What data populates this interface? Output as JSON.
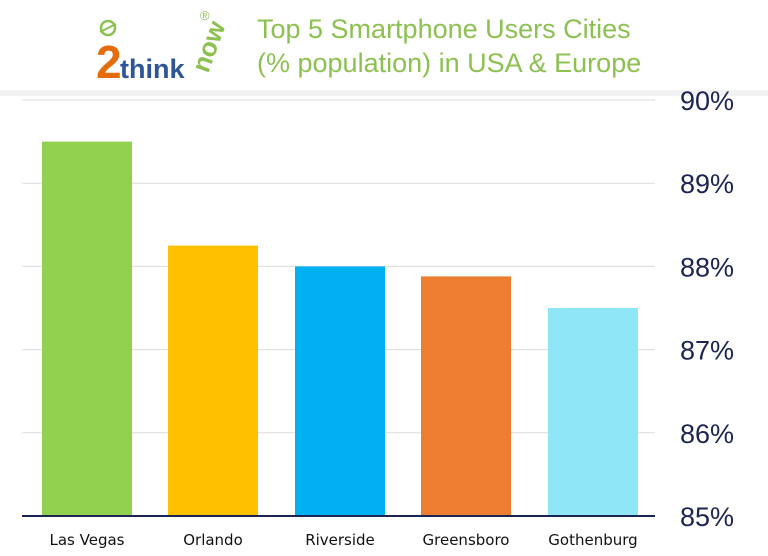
{
  "logo": {
    "text": "2thinknow",
    "registered": "®"
  },
  "chart_data": {
    "type": "bar",
    "title": "Top 5 Smartphone Users Cities",
    "subtitle": "(% population) in USA & Europe",
    "categories": [
      "Las Vegas",
      "Orlando",
      "Riverside",
      "Greensboro",
      "Gothenburg"
    ],
    "values": [
      89.5,
      88.25,
      88.0,
      87.88,
      87.5
    ],
    "colors": [
      "#92d050",
      "#ffc000",
      "#00b0f0",
      "#ed7d31",
      "#8ee6f7"
    ],
    "ylim": [
      85,
      90
    ],
    "yticks": [
      "85%",
      "86%",
      "87%",
      "88%",
      "89%",
      "90%"
    ],
    "yaxis_position": "right",
    "grid": true,
    "xlabel": "",
    "ylabel": ""
  }
}
